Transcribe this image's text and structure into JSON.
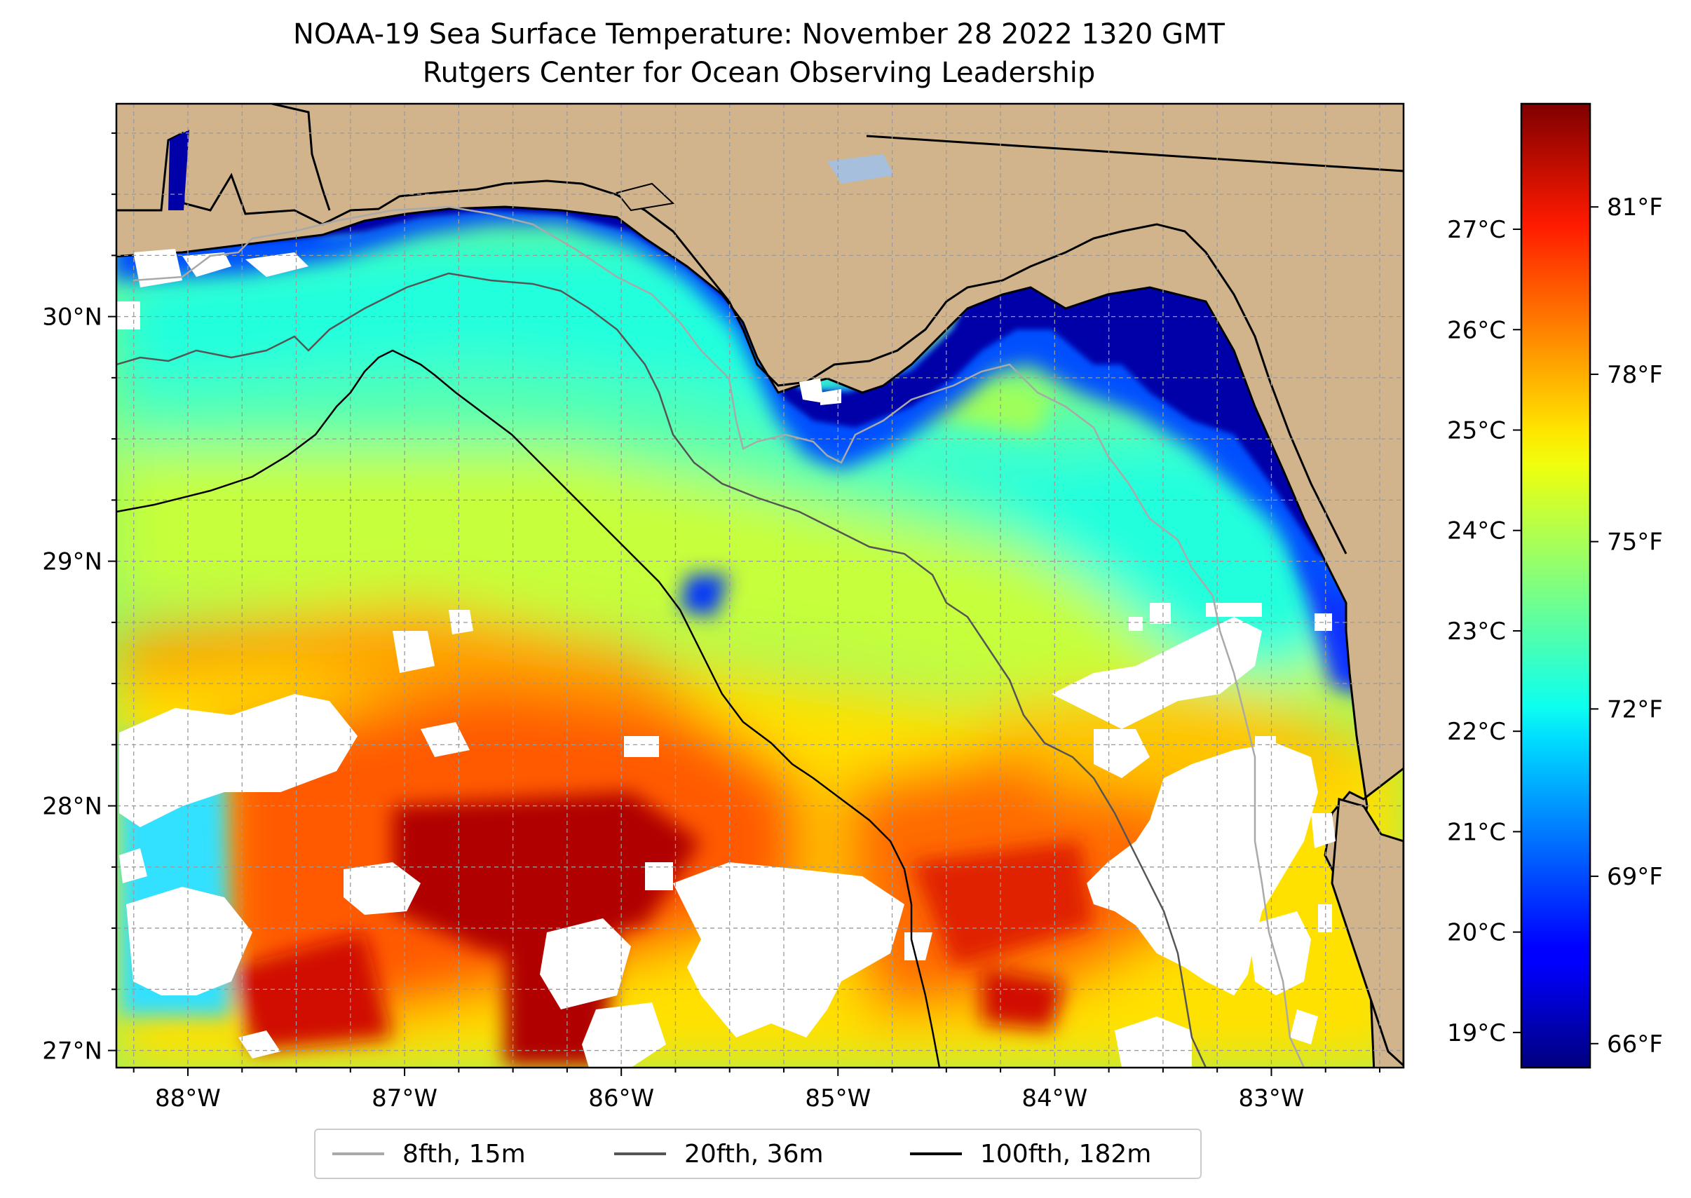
{
  "title": {
    "line1": "NOAA-19 Sea Surface Temperature: November 28 2022 1320 GMT",
    "line2": "Rutgers Center for Ocean Observing Leadership"
  },
  "map": {
    "extent": {
      "lon_min": -88.33,
      "lon_max": -82.39,
      "lat_min": 26.93,
      "lat_max": 30.87
    },
    "lon_ticks": [
      {
        "value": -88,
        "label": "88°W"
      },
      {
        "value": -87,
        "label": "87°W"
      },
      {
        "value": -86,
        "label": "86°W"
      },
      {
        "value": -85,
        "label": "85°W"
      },
      {
        "value": -84,
        "label": "84°W"
      },
      {
        "value": -83,
        "label": "83°W"
      }
    ],
    "lat_ticks": [
      {
        "value": 27,
        "label": "27°N"
      },
      {
        "value": 28,
        "label": "28°N"
      },
      {
        "value": 29,
        "label": "29°N"
      },
      {
        "value": 30,
        "label": "30°N"
      }
    ],
    "gridlines": "dashed, every 0.25°",
    "colors": {
      "land": "#d2b48c",
      "cloud": "#ffffff",
      "grid": "#9a9a9a",
      "lake": "#a5bfdd"
    }
  },
  "colorbar": {
    "colormap": "jet",
    "celsius_range": [
      18.65,
      28.25
    ],
    "celsius_ticks": [
      {
        "value": 19,
        "label": "19°C"
      },
      {
        "value": 20,
        "label": "20°C"
      },
      {
        "value": 21,
        "label": "21°C"
      },
      {
        "value": 22,
        "label": "22°C"
      },
      {
        "value": 23,
        "label": "23°C"
      },
      {
        "value": 24,
        "label": "24°C"
      },
      {
        "value": 25,
        "label": "25°C"
      },
      {
        "value": 26,
        "label": "26°C"
      },
      {
        "value": 27,
        "label": "27°C"
      }
    ],
    "fahrenheit_ticks": [
      {
        "value": 66,
        "label": "66°F"
      },
      {
        "value": 69,
        "label": "69°F"
      },
      {
        "value": 72,
        "label": "72°F"
      },
      {
        "value": 75,
        "label": "75°F"
      },
      {
        "value": 78,
        "label": "78°F"
      },
      {
        "value": 81,
        "label": "81°F"
      }
    ]
  },
  "legend": {
    "items": [
      {
        "label": "8fth, 15m",
        "color": "#a9a9a9"
      },
      {
        "label": "20fth, 36m",
        "color": "#555555"
      },
      {
        "label": "100fth, 182m",
        "color": "#000000"
      }
    ]
  }
}
